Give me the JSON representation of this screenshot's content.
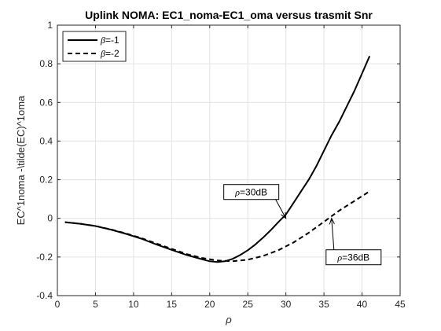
{
  "chart_data": {
    "type": "line",
    "title": "Uplink NOMA: EC1_noma-EC1_oma versus trasmit Snr",
    "xlabel": "ρ",
    "ylabel": "EC^1noma -\\tilde(EC)^1oma",
    "xlim": [
      0,
      45
    ],
    "ylim": [
      -0.4,
      1
    ],
    "xticks": [
      "0",
      "5",
      "10",
      "15",
      "20",
      "25",
      "30",
      "35",
      "40",
      "45"
    ],
    "yticks": [
      "-0.4",
      "-0.2",
      "0",
      "0.2",
      "0.4",
      "0.6",
      "0.8",
      "1"
    ],
    "grid": true,
    "legend_position": "top-left",
    "series": [
      {
        "name_symbol": "β",
        "name_value": "=-1",
        "style": "solid",
        "color": "#000000",
        "x": [
          1,
          3,
          5,
          7,
          9,
          11,
          13,
          15,
          17,
          19,
          20,
          21,
          22,
          23,
          24,
          25,
          26,
          27,
          28,
          29,
          30,
          31,
          32,
          33,
          34,
          35,
          36,
          37,
          38,
          39,
          40,
          41
        ],
        "y": [
          -0.02,
          -0.028,
          -0.04,
          -0.058,
          -0.08,
          -0.105,
          -0.135,
          -0.163,
          -0.19,
          -0.212,
          -0.222,
          -0.226,
          -0.222,
          -0.21,
          -0.19,
          -0.165,
          -0.135,
          -0.1,
          -0.062,
          -0.02,
          0.02,
          0.08,
          0.14,
          0.2,
          0.27,
          0.35,
          0.43,
          0.5,
          0.58,
          0.66,
          0.75,
          0.84
        ]
      },
      {
        "name_symbol": "β",
        "name_value": "=-2",
        "style": "dashed",
        "color": "#000000",
        "x": [
          1,
          3,
          5,
          7,
          9,
          11,
          13,
          15,
          17,
          19,
          21,
          23,
          25,
          27,
          29,
          31,
          33,
          35,
          37,
          39,
          41
        ],
        "y": [
          -0.02,
          -0.028,
          -0.04,
          -0.057,
          -0.078,
          -0.102,
          -0.13,
          -0.158,
          -0.185,
          -0.205,
          -0.218,
          -0.222,
          -0.214,
          -0.195,
          -0.165,
          -0.125,
          -0.075,
          -0.018,
          0.04,
          0.09,
          0.14
        ]
      }
    ],
    "annotations": [
      {
        "symbol": "ρ",
        "text": "=30dB",
        "x": 30,
        "y": 0
      },
      {
        "symbol": "ρ",
        "text": "=36dB",
        "x": 36,
        "y": 0
      }
    ]
  }
}
